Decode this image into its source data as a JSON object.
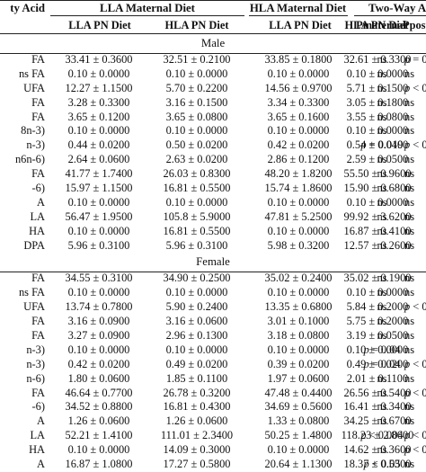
{
  "header": {
    "fatty_acid": "ty Acid",
    "lla_maternal": "LLA Maternal Diet",
    "hla_maternal": "HLA Maternal Diet",
    "two_way": "Two-Way AN",
    "lla_pn": "LLA PN Diet",
    "hla_pn": "HLA PN Diet",
    "lla_pn_2": "LLA PN Diet",
    "hla_pn_2": "HLA PN Diet",
    "pmaternal": "Pmaternal",
    "ppostnatal": "Ppostna"
  },
  "sections": [
    {
      "label": "Male",
      "rows": [
        {
          "name": "FA",
          "v1": "33.41 ± 0.3600",
          "v2": "32.51 ± 0.2100",
          "v3": "33.85 ± 0.1800",
          "v4": "32.61 ± 0.3300",
          "pm": "ns",
          "pp": "p = 0.00"
        },
        {
          "name": "ns FA",
          "v1": "0.10 ± 0.0000",
          "v2": "0.10 ± 0.0000",
          "v3": "0.10 ± 0.0000",
          "v4": "0.10 ± 0.0000",
          "pm": "ns",
          "pp": "ns"
        },
        {
          "name": "UFA",
          "v1": "12.27 ± 1.1500",
          "v2": "5.70 ± 0.2200",
          "v3": "14.56 ± 0.9700",
          "v4": "5.71 ± 0.1500",
          "pm": "ns",
          "pp": "p < 0.00"
        },
        {
          "name": "FA",
          "v1": "3.28 ± 0.3300",
          "v2": "3.16 ± 0.1500",
          "v3": "3.34 ± 0.3300",
          "v4": "3.05 ± 0.1800",
          "pm": "ns",
          "pp": "ns"
        },
        {
          "name": "FA",
          "v1": "3.65 ± 0.1200",
          "v2": "3.65 ± 0.0800",
          "v3": "3.65 ± 0.1600",
          "v4": "3.55 ± 0.0800",
          "pm": "ns",
          "pp": "ns"
        },
        {
          "name": "8n-3)",
          "v1": "0.10 ± 0.0000",
          "v2": "0.10 ± 0.0000",
          "v3": "0.10 ± 0.0000",
          "v4": "0.10 ± 0.0000",
          "pm": "ns",
          "pp": "ns"
        },
        {
          "name": "n-3)",
          "v1": "0.44 ± 0.0200",
          "v2": "0.50 ± 0.0200",
          "v3": "0.42 ± 0.0200",
          "v4": "0.54 ± 0.0400",
          "pm": "p = 0.019",
          "pp": "p < 0.00"
        },
        {
          "name": "n6n-6)",
          "v1": "2.64 ± 0.0600",
          "v2": "2.63 ± 0.0200",
          "v3": "2.86 ± 0.1200",
          "v4": "2.59 ± 0.0500",
          "pm": "ns",
          "pp": "ns"
        },
        {
          "name": "FA",
          "v1": "41.77 ± 1.7400",
          "v2": "26.03 ± 0.8300",
          "v3": "48.20 ± 1.8200",
          "v4": "55.50 ± 0.9600",
          "pm": "ns",
          "pp": "ns"
        },
        {
          "name": "-6)",
          "v1": "15.97 ± 1.1500",
          "v2": "16.81 ± 0.5500",
          "v3": "15.74 ± 1.8600",
          "v4": "15.90 ± 0.6800",
          "pm": "ns",
          "pp": "ns"
        },
        {
          "name": "A",
          "v1": "0.10 ± 0.0000",
          "v2": "0.10 ± 0.0000",
          "v3": "0.10 ± 0.0000",
          "v4": "0.10 ± 0.0000",
          "pm": "ns",
          "pp": "ns"
        },
        {
          "name": "LA",
          "v1": "56.47 ± 1.9500",
          "v2": "105.8 ± 5.9000",
          "v3": "47.81 ± 5.2500",
          "v4": "99.92 ± 3.6200",
          "pm": "ns",
          "pp": "ns"
        },
        {
          "name": "HA",
          "v1": "0.10 ± 0.0000",
          "v2": "16.81 ± 0.5500",
          "v3": "0.10 ± 0.0000",
          "v4": "16.87 ± 0.4100",
          "pm": "ns",
          "pp": "ns"
        },
        {
          "name": "DPA",
          "v1": "5.96 ± 0.3100",
          "v2": "5.96 ± 0.3100",
          "v3": "5.98 ± 0.3200",
          "v4": "12.57 ± 0.2600",
          "pm": "ns",
          "pp": "ns"
        }
      ]
    },
    {
      "label": "Female",
      "rows": [
        {
          "name": "FA",
          "v1": "34.55 ± 0.3100",
          "v2": "34.90 ± 0.2500",
          "v3": "35.02 ± 0.2400",
          "v4": "35.02 ± 0.1900",
          "pm": "ns",
          "pp": "ns"
        },
        {
          "name": "ns FA",
          "v1": "0.10 ± 0.0000",
          "v2": "0.10 ± 0.0000",
          "v3": "0.10 ± 0.0000",
          "v4": "0.10 ± 0.0000",
          "pm": "ns",
          "pp": "ns"
        },
        {
          "name": "UFA",
          "v1": "13.74 ± 0.7800",
          "v2": "5.90 ± 0.2400",
          "v3": "13.35 ± 0.6800",
          "v4": "5.84 ± 0.2000",
          "pm": "ns",
          "pp": "p < 0.00"
        },
        {
          "name": "FA",
          "v1": "3.16 ± 0.0900",
          "v2": "3.16 ± 0.0600",
          "v3": "3.01 ± 0.1000",
          "v4": "5.75 ± 0.2000",
          "pm": "ns",
          "pp": "ns"
        },
        {
          "name": "FA",
          "v1": "3.27 ± 0.0900",
          "v2": "2.96 ± 0.1300",
          "v3": "3.18 ± 0.0800",
          "v4": "3.19 ± 0.0500",
          "pm": "ns",
          "pp": "ns"
        },
        {
          "name": "n-3)",
          "v1": "0.10 ± 0.0000",
          "v2": "0.10 ± 0.0000",
          "v3": "0.10 ± 0.0000",
          "v4": "0.10 ± 0.0000",
          "pm": "p = 0.04",
          "pp": "ns"
        },
        {
          "name": "n-3)",
          "v1": "0.42 ± 0.0200",
          "v2": "0.49 ± 0.0200",
          "v3": "0.39 ± 0.0200",
          "v4": "0.49 ± 0.0200",
          "pm": "p = 0.04",
          "pp": "p < 0.00"
        },
        {
          "name": "n-6)",
          "v1": "1.80 ± 0.0600",
          "v2": "1.85 ± 0.1100",
          "v3": "1.97 ± 0.0600",
          "v4": "2.01 ± 0.1100",
          "pm": "ns",
          "pp": "ns"
        },
        {
          "name": "FA",
          "v1": "46.64 ± 0.7700",
          "v2": "26.78 ± 0.3200",
          "v3": "47.48 ± 0.4400",
          "v4": "26.56 ± 0.5400",
          "pm": "ns",
          "pp": "p < 0.00"
        },
        {
          "name": "-6)",
          "v1": "34.52 ± 0.8800",
          "v2": "16.81 ± 0.4300",
          "v3": "34.69 ± 0.5600",
          "v4": "16.41 ± 0.3400",
          "pm": "ns",
          "pp": "ns"
        },
        {
          "name": "A",
          "v1": "1.26 ± 0.0600",
          "v2": "1.26 ± 0.0600",
          "v3": "1.33 ± 0.0800",
          "v4": "34.25 ± 0.6700",
          "pm": "ns",
          "pp": "ns"
        },
        {
          "name": "LA",
          "v1": "52.21 ± 1.4100",
          "v2": "111.01 ± 2.3400",
          "v3": "50.25 ± 1.4800",
          "v4": "118.23 ± 2.8600",
          "pm": "p < 0.004",
          "pp": "p < 0.00"
        },
        {
          "name": "HA",
          "v1": "0.10 ± 0.0000",
          "v2": "14.09 ± 0.3000",
          "v3": "0.10 ± 0.0000",
          "v4": "14.62 ± 0.3600",
          "pm": "ns",
          "pp": "p < 0.00"
        },
        {
          "name": "A",
          "v1": "16.87 ± 1.0800",
          "v2": "17.27 ± 0.5800",
          "v3": "20.64 ± 1.1300",
          "v4": "18.37 ± 0.5300",
          "pm": "p < 0.05",
          "pp": "ns"
        }
      ]
    }
  ]
}
